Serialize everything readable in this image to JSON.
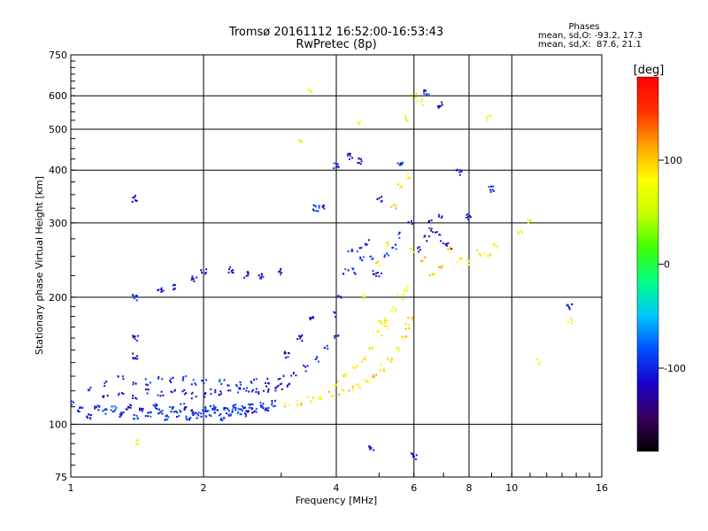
{
  "chart_data": {
    "type": "scatter",
    "title": "Tromsø 20161112 16:52:00-16:53:43",
    "subtitle": "RwPretec (8p)",
    "xlabel": "Frequency [MHz]",
    "ylabel": "Stationary phase Virtual Height [km]",
    "x_scale": "log",
    "y_scale": "log",
    "xlim": [
      1,
      16
    ],
    "ylim": [
      75,
      750
    ],
    "x_ticks": [
      {
        "value": 1,
        "label": "1"
      },
      {
        "value": 2,
        "label": "2"
      },
      {
        "value": 4,
        "label": "4"
      },
      {
        "value": 6,
        "label": "6"
      },
      {
        "value": 8,
        "label": "8"
      },
      {
        "value": 10,
        "label": "10"
      },
      {
        "value": 16,
        "label": "16"
      }
    ],
    "y_ticks": [
      {
        "value": 75,
        "label": "75"
      },
      {
        "value": 100,
        "label": "100"
      },
      {
        "value": 200,
        "label": "200"
      },
      {
        "value": 300,
        "label": "300"
      },
      {
        "value": 400,
        "label": "400"
      },
      {
        "value": 500,
        "label": "500"
      },
      {
        "value": 600,
        "label": "600"
      },
      {
        "value": 750,
        "label": "750"
      }
    ],
    "x_gridlines": [
      2,
      4,
      6,
      8,
      10
    ],
    "y_gridlines": [
      100,
      200,
      300,
      400,
      500,
      600
    ],
    "grid": true,
    "legend": {
      "title": "Phases",
      "lines": [
        "mean, sd,O: -93.2, 17.3",
        "mean, sd,X:  87.6, 21.1"
      ],
      "placement": "top-right"
    },
    "colorbar": {
      "label": "[deg]",
      "range": [
        -180,
        180
      ],
      "ticks": [
        {
          "value": 100,
          "label": "100"
        },
        {
          "value": 0,
          "label": "0"
        },
        {
          "value": -100,
          "label": "-100"
        }
      ],
      "colors": [
        "#000000",
        "#3b0060",
        "#1a00c8",
        "#0050ff",
        "#00c8ff",
        "#00ff80",
        "#40ff00",
        "#c8ff00",
        "#ffff00",
        "#ffa000",
        "#ff3000",
        "#ff0000"
      ]
    },
    "series": [
      {
        "type": "band",
        "points": [
          [
            1.0,
            112
          ],
          [
            1.05,
            108
          ],
          [
            1.1,
            104
          ],
          [
            1.15,
            110
          ],
          [
            1.2,
            107
          ],
          [
            1.25,
            109
          ],
          [
            1.3,
            106
          ],
          [
            1.35,
            110
          ],
          [
            1.4,
            104
          ],
          [
            1.45,
            108
          ],
          [
            1.5,
            105
          ],
          [
            1.55,
            110
          ],
          [
            1.6,
            107
          ],
          [
            1.65,
            104
          ],
          [
            1.7,
            108
          ],
          [
            1.75,
            106
          ],
          [
            1.8,
            110
          ],
          [
            1.85,
            104
          ],
          [
            1.9,
            107
          ],
          [
            1.95,
            105
          ],
          [
            2.0,
            108
          ],
          [
            2.05,
            106
          ],
          [
            2.1,
            110
          ],
          [
            2.15,
            107
          ],
          [
            2.2,
            104
          ],
          [
            2.25,
            108
          ],
          [
            2.3,
            106
          ],
          [
            2.35,
            110
          ],
          [
            2.4,
            107
          ],
          [
            2.45,
            109
          ],
          [
            2.5,
            106
          ],
          [
            2.55,
            110
          ],
          [
            2.6,
            108
          ],
          [
            2.7,
            111
          ],
          [
            2.8,
            109
          ],
          [
            2.9,
            112
          ]
        ],
        "phase": -95
      },
      {
        "type": "band",
        "points": [
          [
            1.2,
            116
          ],
          [
            1.3,
            118
          ],
          [
            1.4,
            117
          ],
          [
            1.5,
            120
          ],
          [
            1.6,
            118
          ],
          [
            1.7,
            121
          ],
          [
            1.8,
            119
          ],
          [
            1.9,
            117
          ],
          [
            2.0,
            118
          ],
          [
            2.1,
            120
          ],
          [
            2.2,
            119
          ],
          [
            2.3,
            122
          ],
          [
            2.4,
            120
          ],
          [
            2.5,
            121
          ],
          [
            2.6,
            120
          ],
          [
            2.7,
            118
          ],
          [
            2.8,
            121
          ],
          [
            2.9,
            122
          ],
          [
            3.0,
            123
          ],
          [
            3.1,
            124
          ]
        ],
        "phase": -110
      },
      {
        "type": "band",
        "points": [
          [
            1.1,
            122
          ],
          [
            1.2,
            125
          ],
          [
            1.3,
            128
          ],
          [
            1.4,
            124
          ],
          [
            1.5,
            126
          ],
          [
            1.6,
            129
          ],
          [
            1.7,
            127
          ],
          [
            1.8,
            128
          ],
          [
            1.9,
            126
          ],
          [
            2.0,
            127
          ],
          [
            2.2,
            126
          ],
          [
            2.4,
            125
          ],
          [
            2.6,
            126
          ],
          [
            2.8,
            127
          ],
          [
            3.0,
            129
          ],
          [
            3.2,
            132
          ],
          [
            3.4,
            136
          ],
          [
            3.6,
            142
          ],
          [
            3.8,
            152
          ],
          [
            4.0,
            160
          ]
        ],
        "phase": -100
      },
      {
        "type": "band",
        "points": [
          [
            3.1,
            112
          ],
          [
            3.3,
            113
          ],
          [
            3.5,
            114
          ],
          [
            3.7,
            116
          ],
          [
            3.9,
            118
          ],
          [
            4.1,
            119
          ],
          [
            4.3,
            121
          ],
          [
            4.5,
            124
          ],
          [
            4.7,
            127
          ],
          [
            4.9,
            131
          ],
          [
            5.1,
            136
          ],
          [
            5.3,
            142
          ],
          [
            5.5,
            150
          ],
          [
            5.7,
            160
          ],
          [
            5.8,
            170
          ],
          [
            5.9,
            180
          ]
        ],
        "phase": 90
      },
      {
        "type": "band",
        "points": [
          [
            4.0,
            125
          ],
          [
            4.2,
            130
          ],
          [
            4.4,
            136
          ],
          [
            4.6,
            143
          ],
          [
            4.8,
            152
          ],
          [
            5.0,
            165
          ],
          [
            5.2,
            176
          ],
          [
            5.4,
            188
          ],
          [
            5.6,
            200
          ],
          [
            5.75,
            210
          ]
        ],
        "phase": 80
      },
      {
        "type": "band",
        "points": [
          [
            4.0,
            182
          ],
          [
            4.1,
            200
          ],
          [
            4.2,
            230
          ],
          [
            4.3,
            255
          ],
          [
            4.4,
            230
          ],
          [
            4.5,
            260
          ],
          [
            4.6,
            245
          ],
          [
            4.7,
            270
          ],
          [
            4.8,
            250
          ],
          [
            4.9,
            230
          ],
          [
            5.0,
            225
          ],
          [
            5.2,
            250
          ],
          [
            5.4,
            262
          ],
          [
            5.6,
            280
          ]
        ],
        "phase": -100
      },
      {
        "type": "band",
        "points": [
          [
            5.0,
            240
          ],
          [
            5.2,
            265
          ],
          [
            5.4,
            330
          ],
          [
            5.6,
            370
          ],
          [
            5.8,
            385
          ],
          [
            6.0,
            260
          ],
          [
            6.3,
            245
          ],
          [
            6.6,
            225
          ],
          [
            6.9,
            235
          ],
          [
            7.2,
            260
          ],
          [
            7.6,
            245
          ],
          [
            8.0,
            242
          ],
          [
            8.4,
            255
          ],
          [
            8.8,
            250
          ],
          [
            9.2,
            265
          ]
        ],
        "phase": 95
      },
      {
        "type": "band",
        "points": [
          [
            6.2,
            260
          ],
          [
            6.4,
            275
          ],
          [
            6.6,
            290
          ],
          [
            6.8,
            285
          ],
          [
            7.0,
            270
          ],
          [
            7.2,
            265
          ],
          [
            6.5,
            300
          ],
          [
            6.9,
            310
          ],
          [
            5.9,
            300
          ]
        ],
        "phase": -115
      },
      {
        "type": "band",
        "points": [
          [
            1.4,
            145
          ],
          [
            1.4,
            160
          ],
          [
            1.4,
            200
          ],
          [
            1.4,
            342
          ],
          [
            1.6,
            208
          ],
          [
            1.7,
            212
          ],
          [
            1.9,
            222
          ],
          [
            2.0,
            230
          ],
          [
            2.3,
            232
          ],
          [
            2.5,
            226
          ],
          [
            2.7,
            224
          ],
          [
            3.0,
            230
          ],
          [
            3.1,
            146
          ],
          [
            3.3,
            160
          ],
          [
            3.5,
            178
          ],
          [
            3.6,
            325
          ],
          [
            3.7,
            330
          ],
          [
            4.0,
            410
          ],
          [
            4.3,
            430
          ],
          [
            4.5,
            420
          ],
          [
            5.0,
            340
          ],
          [
            5.6,
            410
          ],
          [
            6.4,
            610
          ],
          [
            6.9,
            570
          ],
          [
            7.6,
            395
          ],
          [
            8.0,
            310
          ],
          [
            9.0,
            360
          ],
          [
            13.5,
            190
          ],
          [
            4.8,
            88
          ],
          [
            6.0,
            84
          ]
        ],
        "phase": -110
      },
      {
        "type": "band",
        "points": [
          [
            3.3,
            465
          ],
          [
            3.5,
            615
          ],
          [
            1.4,
            91
          ],
          [
            4.5,
            520
          ],
          [
            5.8,
            530
          ],
          [
            6.0,
            600
          ],
          [
            6.2,
            580
          ],
          [
            8.9,
            530
          ],
          [
            10.5,
            286
          ],
          [
            11.0,
            300
          ],
          [
            11.5,
            140
          ],
          [
            13.6,
            175
          ],
          [
            5.0,
            175
          ],
          [
            5.2,
            170
          ],
          [
            4.6,
            200
          ]
        ],
        "phase": 70
      }
    ]
  }
}
